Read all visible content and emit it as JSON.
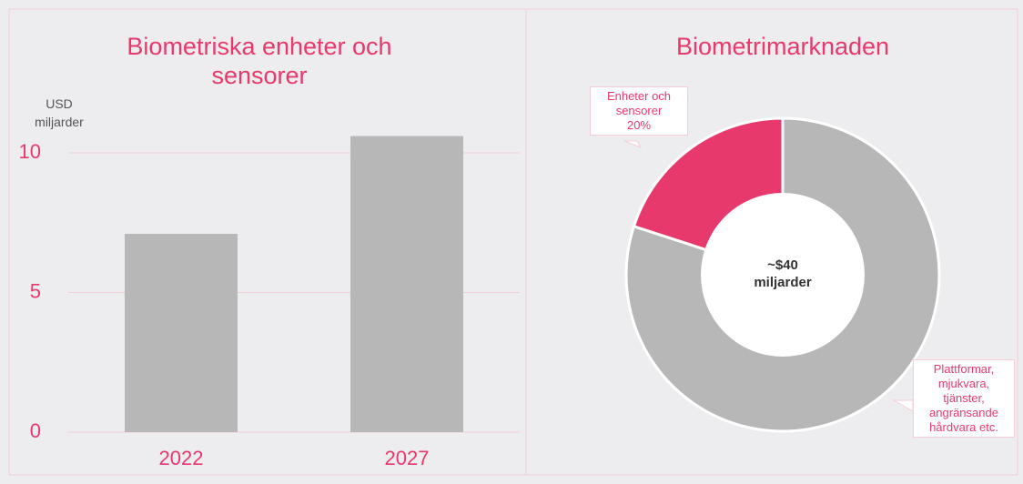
{
  "chart_data": [
    {
      "type": "bar",
      "title": "Biometriska enheter och sensorer",
      "y_label": "USD miljarder",
      "categories": [
        "2022",
        "2027"
      ],
      "values": [
        7.1,
        10.6
      ],
      "color": "#b7b7b7",
      "ylim": [
        0,
        11
      ],
      "yticks": [
        0,
        5,
        10
      ],
      "grid": true
    },
    {
      "type": "pie",
      "donut": true,
      "title": "Biometrimarknaden",
      "center_label": "~$40 miljarder",
      "categories": [
        "Enheter och sensorer",
        "Plattformar, mjukvara, tjänster, angränsande hårdvara etc."
      ],
      "values": [
        20,
        80
      ],
      "value_labels": [
        "20%",
        null
      ],
      "colors": [
        "#e8396d",
        "#b7b7b7"
      ]
    }
  ]
}
